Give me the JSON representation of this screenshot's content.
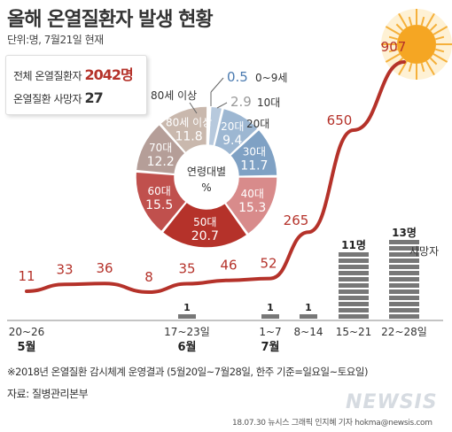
{
  "header": {
    "title": "올해 온열질환자 발생 현황",
    "subtitle": "단위:명, 7월21일 현재"
  },
  "summary": {
    "patients_label": "전체 온열질환자",
    "patients_value": "2042명",
    "deaths_label": "온열질환 사망자",
    "deaths_value": "27"
  },
  "footnote": "※2018년 온열질환 감시체계 운영결과 (5월20일~7월28일, 한주 기준=일요일~토요일)",
  "source": "자료: 질병관리본부",
  "credit": "18.07.30 뉴시스 그래픽 인지혜 기자 hokma@newsis.com",
  "watermark": "NEWSIS",
  "colors": {
    "line": "#b5322a",
    "bars": "#777777",
    "sun": "#f5a623"
  },
  "chart_data": [
    {
      "type": "line",
      "categories": [
        "20~26",
        "",
        "",
        "",
        "17~23일",
        "",
        "1~7",
        "8~14",
        "15~21",
        "22~28일"
      ],
      "month_labels": [
        {
          "index": 0,
          "label": "5월"
        },
        {
          "index": 4,
          "label": "6월"
        },
        {
          "index": 6,
          "label": "7월"
        }
      ],
      "series": [
        {
          "values": [
            11,
            33,
            36,
            8,
            35,
            46,
            52,
            265,
            650,
            907
          ]
        }
      ],
      "value_labels": [
        "11",
        "33",
        "36",
        "8",
        "35",
        "46",
        "52",
        "265",
        "650",
        "907"
      ],
      "ylim": [
        0,
        950
      ]
    },
    {
      "type": "bar",
      "series": [
        {
          "name": "사망자",
          "values": [
            0,
            0,
            0,
            0,
            1,
            0,
            1,
            1,
            11,
            13
          ]
        }
      ],
      "value_labels": [
        "",
        "",
        "",
        "",
        "1",
        "",
        "1",
        "1",
        "11명",
        "13명"
      ],
      "ylim": [
        0,
        13
      ]
    },
    {
      "type": "pie",
      "center_label": "연령대별",
      "center_unit": "%",
      "slices": [
        {
          "label": "0~9세",
          "value": 0.5,
          "value_label": "0.5",
          "color": "#4a7ab0"
        },
        {
          "label": "10대",
          "value": 2.9,
          "value_label": "2.9",
          "color": "#b7c9dd"
        },
        {
          "label": "20대",
          "value": 9.4,
          "value_label": "9.4",
          "color": "#9db7d2"
        },
        {
          "label": "30대",
          "value": 11.7,
          "value_label": "11.7",
          "color": "#7fa1c4"
        },
        {
          "label": "40대",
          "value": 15.3,
          "value_label": "15.3",
          "color": "#d88b8b"
        },
        {
          "label": "50대",
          "value": 20.7,
          "value_label": "20.7",
          "color": "#b5322a"
        },
        {
          "label": "60대",
          "value": 15.5,
          "value_label": "15.5",
          "color": "#c0504d"
        },
        {
          "label": "70대",
          "value": 12.2,
          "value_label": "12.2",
          "color": "#b59e98"
        },
        {
          "label": "80세 이상",
          "value": 11.8,
          "value_label": "11.8",
          "color": "#c9b8ad"
        }
      ]
    }
  ]
}
